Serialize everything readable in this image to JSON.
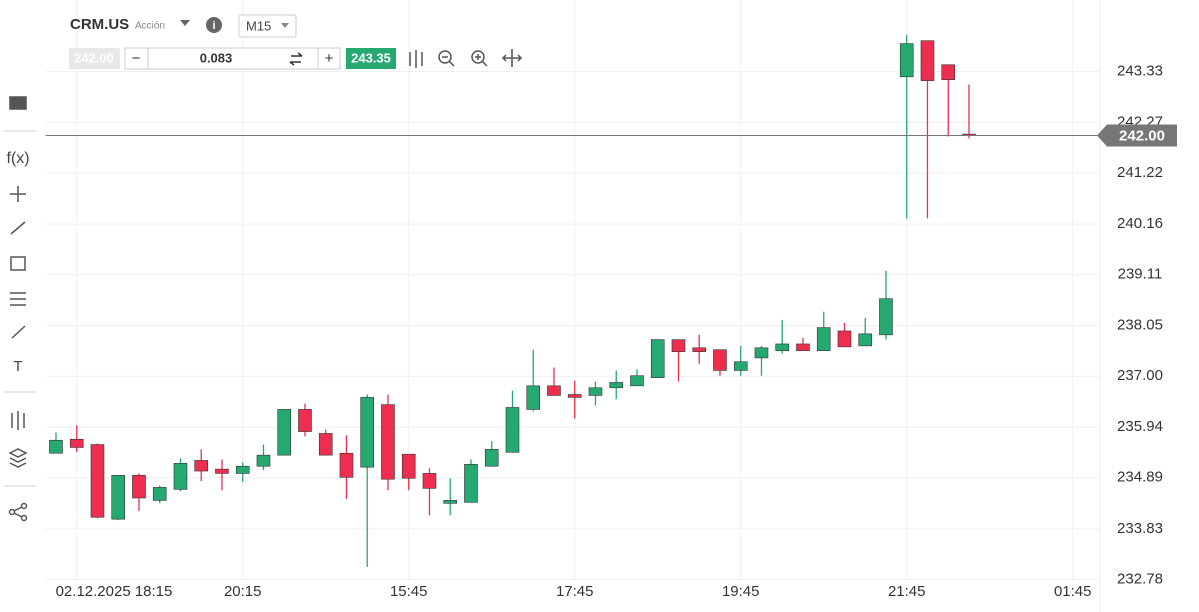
{
  "header": {
    "symbol": "CRM.US",
    "asset_type": "Acción",
    "timeframe": "M15",
    "sell": "242.00",
    "volume": "0.083",
    "buy": "243.35",
    "minus": "−",
    "plus": "+"
  },
  "toolbar": {
    "function": "f(x)",
    "text": "T"
  },
  "chart_data": {
    "type": "candlestick",
    "categories": [
      null,
      "02.12.2025 18:15",
      null,
      null,
      null,
      null,
      null,
      null,
      null,
      "20:15",
      null,
      null,
      null,
      null,
      null,
      null,
      null,
      "15:45",
      null,
      null,
      null,
      null,
      null,
      null,
      null,
      "17:45",
      null,
      null,
      null,
      null,
      null,
      null,
      null,
      "19:45",
      null,
      null,
      null,
      null,
      null,
      null,
      null,
      "21:45",
      null,
      null,
      null,
      null,
      null,
      null,
      null,
      "01:45"
    ],
    "open": [
      235.4,
      235.69,
      235.58,
      234.03,
      234.94,
      234.42,
      234.65,
      235.25,
      235.07,
      234.98,
      235.13,
      235.36,
      236.31,
      235.81,
      235.4,
      235.11,
      236.41,
      235.38,
      234.98,
      234.36,
      234.38,
      235.13,
      235.42,
      236.31,
      236.8,
      236.62,
      236.6,
      236.76,
      236.8,
      236.97,
      237.76,
      237.59,
      237.55,
      237.12,
      237.38,
      237.53,
      237.67,
      237.53,
      237.94,
      237.63,
      237.86,
      243.22,
      243.97,
      243.47,
      242.03,
      null,
      null,
      null,
      null,
      null
    ],
    "high": [
      235.83,
      235.98,
      235.6,
      234.94,
      234.98,
      234.73,
      235.29,
      235.48,
      235.27,
      235.21,
      235.58,
      236.31,
      236.43,
      235.89,
      235.77,
      236.62,
      236.62,
      235.38,
      235.09,
      234.88,
      235.27,
      235.65,
      236.7,
      237.55,
      237.18,
      236.91,
      236.89,
      237.12,
      237.14,
      237.76,
      237.76,
      237.86,
      237.55,
      237.63,
      237.63,
      238.17,
      237.8,
      238.34,
      238.11,
      238.21,
      239.19,
      244.09,
      243.97,
      243.47,
      243.06,
      null,
      null,
      null,
      null,
      null
    ],
    "low": [
      235.4,
      235.42,
      234.05,
      234.01,
      234.2,
      234.36,
      234.61,
      234.82,
      234.63,
      234.8,
      235.05,
      235.36,
      235.75,
      235.36,
      234.45,
      233.04,
      234.63,
      234.63,
      234.11,
      234.11,
      234.38,
      235.13,
      235.42,
      236.27,
      236.6,
      236.12,
      236.39,
      236.52,
      236.8,
      236.97,
      236.89,
      237.26,
      237.01,
      237.01,
      237.01,
      237.47,
      237.53,
      237.53,
      237.61,
      237.63,
      237.76,
      240.28,
      240.28,
      241.98,
      241.94,
      null,
      null,
      null,
      null,
      null
    ],
    "close": [
      235.67,
      235.52,
      234.07,
      234.94,
      234.47,
      234.69,
      235.19,
      235.03,
      234.98,
      235.13,
      235.36,
      236.31,
      235.85,
      235.36,
      234.9,
      236.56,
      234.86,
      234.88,
      234.67,
      234.42,
      235.17,
      235.48,
      236.35,
      236.8,
      236.6,
      236.56,
      236.76,
      236.87,
      237.01,
      237.76,
      237.51,
      237.51,
      237.12,
      237.3,
      237.59,
      237.67,
      237.53,
      238.01,
      237.61,
      237.88,
      238.61,
      243.91,
      243.14,
      243.16,
      242.0,
      null,
      null,
      null,
      null,
      null
    ],
    "up_color": "#26a871",
    "down_color": "#ee2e4f",
    "ylim": [
      232.6,
      244.4
    ],
    "yticks": [
      232.78,
      233.83,
      234.89,
      235.94,
      {
        "value": 237,
        "label": "237.00"
      },
      238.05,
      239.11,
      240.16,
      241.22,
      242.27,
      243.33
    ],
    "grid": true,
    "current_price": {
      "value": 242,
      "label": "242.00"
    }
  }
}
